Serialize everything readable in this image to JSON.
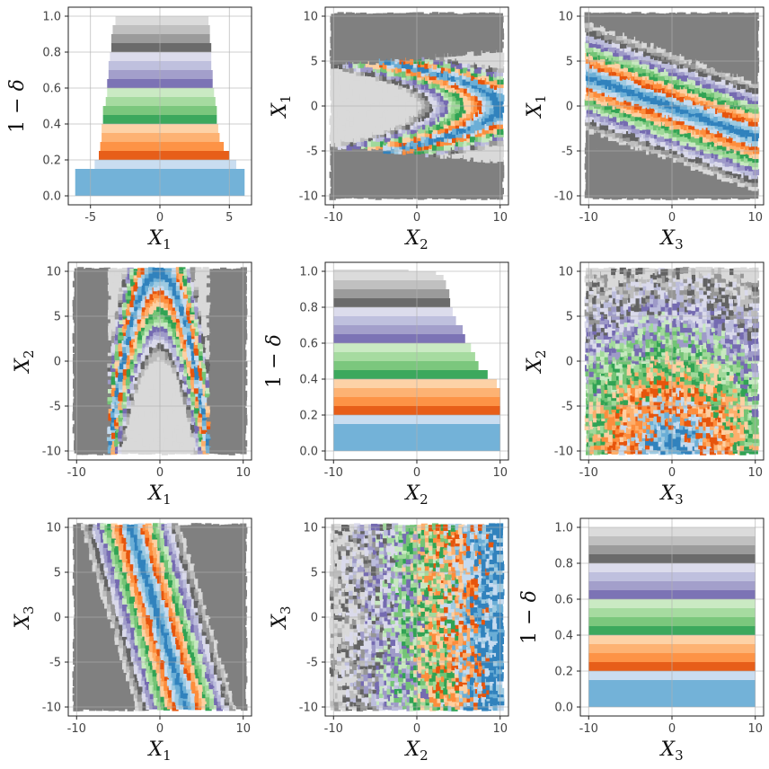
{
  "figure": {
    "background": "#ffffff",
    "grid": true
  },
  "palette": {
    "tab20c": [
      "#3182bd",
      "#6baed6",
      "#9ecae1",
      "#c6dbef",
      "#e6550d",
      "#fd8d3c",
      "#fdae6b",
      "#fdd0a2",
      "#31a354",
      "#74c476",
      "#a1d99b",
      "#c7e9c0",
      "#756bb1",
      "#9e9ac8",
      "#bcbddc",
      "#dadaeb",
      "#636363",
      "#969696",
      "#bdbdbd",
      "#d9d9d9"
    ],
    "outside": "#808080"
  },
  "chart_data": [
    {
      "panel": "r0c0",
      "type": "bar",
      "orientation": "horizontal",
      "xlabel": "X_1",
      "ylabel": "1 − δ",
      "xlim": [
        -6.6,
        6.6
      ],
      "ylim": [
        -0.05,
        1.05
      ],
      "xticks": [
        "-5",
        "0",
        "5"
      ],
      "yticks": [
        "0.0",
        "0.2",
        "0.4",
        "0.6",
        "0.8",
        "1.0"
      ],
      "levels": [
        0.05,
        0.15,
        0.2,
        0.25,
        0.3,
        0.35,
        0.4,
        0.45,
        0.5,
        0.55,
        0.6,
        0.65,
        0.7,
        0.75,
        0.8,
        0.85,
        0.9,
        0.95,
        1.0
      ],
      "bars": [
        {
          "y0": 0.0,
          "y1": 0.15,
          "left": -6.1,
          "right": 6.1
        },
        {
          "y0": 0.15,
          "y1": 0.2,
          "left": -4.7,
          "right": 5.5
        },
        {
          "y0": 0.2,
          "y1": 0.25,
          "left": -4.4,
          "right": 5.0
        },
        {
          "y0": 0.25,
          "y1": 0.3,
          "left": -4.3,
          "right": 4.6
        },
        {
          "y0": 0.3,
          "y1": 0.35,
          "left": -4.2,
          "right": 4.3
        },
        {
          "y0": 0.35,
          "y1": 0.4,
          "left": -4.2,
          "right": 4.2
        },
        {
          "y0": 0.4,
          "y1": 0.45,
          "left": -4.1,
          "right": 4.1
        },
        {
          "y0": 0.45,
          "y1": 0.5,
          "left": -4.1,
          "right": 4.1
        },
        {
          "y0": 0.5,
          "y1": 0.55,
          "left": -3.9,
          "right": 4.0
        },
        {
          "y0": 0.55,
          "y1": 0.6,
          "left": -3.8,
          "right": 3.9
        },
        {
          "y0": 0.6,
          "y1": 0.65,
          "left": -3.8,
          "right": 3.8
        },
        {
          "y0": 0.65,
          "y1": 0.7,
          "left": -3.7,
          "right": 3.8
        },
        {
          "y0": 0.7,
          "y1": 0.75,
          "left": -3.7,
          "right": 3.7
        },
        {
          "y0": 0.75,
          "y1": 0.8,
          "left": -3.6,
          "right": 3.7
        },
        {
          "y0": 0.8,
          "y1": 0.85,
          "left": -3.5,
          "right": 3.7
        },
        {
          "y0": 0.85,
          "y1": 0.9,
          "left": -3.5,
          "right": 3.6
        },
        {
          "y0": 0.9,
          "y1": 0.95,
          "left": -3.4,
          "right": 3.6
        },
        {
          "y0": 0.95,
          "y1": 1.0,
          "left": -3.2,
          "right": 3.5
        }
      ]
    },
    {
      "panel": "r0c1",
      "type": "heatmap",
      "shape": "parabola_horizontal",
      "xlabel": "X_2",
      "ylabel": "X_1",
      "xlim": [
        -11,
        11
      ],
      "ylim": [
        -11,
        11
      ],
      "xticks": [
        "-10",
        "0",
        "10"
      ],
      "yticks": [
        "-10",
        "-5",
        "0",
        "5",
        "10"
      ]
    },
    {
      "panel": "r0c2",
      "type": "heatmap",
      "shape": "diagonal_band",
      "xlabel": "X_3",
      "ylabel": "X_1",
      "xlim": [
        -11,
        11
      ],
      "ylim": [
        -11,
        11
      ],
      "xticks": [
        "-10",
        "0",
        "10"
      ],
      "yticks": [
        "-10",
        "-5",
        "0",
        "5",
        "10"
      ]
    },
    {
      "panel": "r1c0",
      "type": "heatmap",
      "shape": "parabola_vertical",
      "xlabel": "X_1",
      "ylabel": "X_2",
      "xlim": [
        -11,
        11
      ],
      "ylim": [
        -11,
        11
      ],
      "xticks": [
        "-10",
        "0",
        "10"
      ],
      "yticks": [
        "-10",
        "-5",
        "0",
        "5",
        "10"
      ]
    },
    {
      "panel": "r1c1",
      "type": "bar",
      "orientation": "horizontal",
      "xlabel": "X_2",
      "ylabel": "1 − δ",
      "xlim": [
        -11,
        11
      ],
      "ylim": [
        -0.05,
        1.05
      ],
      "xticks": [
        "-10",
        "0",
        "10"
      ],
      "yticks": [
        "0.0",
        "0.2",
        "0.4",
        "0.6",
        "0.8",
        "1.0"
      ],
      "bars": [
        {
          "y0": 0.0,
          "y1": 0.15,
          "left": -10,
          "right": 10
        },
        {
          "y0": 0.15,
          "y1": 0.2,
          "left": -10,
          "right": 10
        },
        {
          "y0": 0.2,
          "y1": 0.25,
          "left": -10,
          "right": 10
        },
        {
          "y0": 0.25,
          "y1": 0.3,
          "left": -10,
          "right": 10
        },
        {
          "y0": 0.3,
          "y1": 0.35,
          "left": -10,
          "right": 10
        },
        {
          "y0": 0.35,
          "y1": 0.4,
          "left": -10,
          "right": 9.6
        },
        {
          "y0": 0.4,
          "y1": 0.45,
          "left": -10,
          "right": 8.5
        },
        {
          "y0": 0.45,
          "y1": 0.5,
          "left": -10,
          "right": 7.4
        },
        {
          "y0": 0.5,
          "y1": 0.55,
          "left": -10,
          "right": 7.0
        },
        {
          "y0": 0.55,
          "y1": 0.6,
          "left": -10,
          "right": 6.5
        },
        {
          "y0": 0.6,
          "y1": 0.65,
          "left": -10,
          "right": 5.8
        },
        {
          "y0": 0.65,
          "y1": 0.7,
          "left": -10,
          "right": 5.5
        },
        {
          "y0": 0.7,
          "y1": 0.75,
          "left": -10,
          "right": 4.7
        },
        {
          "y0": 0.75,
          "y1": 0.8,
          "left": -10,
          "right": 4.3
        },
        {
          "y0": 0.8,
          "y1": 0.85,
          "left": -10,
          "right": 4.0
        },
        {
          "y0": 0.85,
          "y1": 0.9,
          "left": -10,
          "right": 3.9
        },
        {
          "y0": 0.9,
          "y1": 0.95,
          "left": -10,
          "right": 3.5
        },
        {
          "y0": 0.95,
          "y1": 0.98,
          "left": -10,
          "right": 3.2
        },
        {
          "y0": 0.98,
          "y1": 1.0,
          "left": -10,
          "right": 2.3
        },
        {
          "y0": 1.0,
          "y1": 1.01,
          "left": -10,
          "right": -1.0
        }
      ]
    },
    {
      "panel": "r1c2",
      "type": "heatmap",
      "shape": "scattered_arcs",
      "xlabel": "X_3",
      "ylabel": "X_2",
      "xlim": [
        -11,
        11
      ],
      "ylim": [
        -11,
        11
      ],
      "xticks": [
        "-10",
        "0",
        "10"
      ],
      "yticks": [
        "-10",
        "-5",
        "0",
        "5",
        "10"
      ]
    },
    {
      "panel": "r2c0",
      "type": "heatmap",
      "shape": "steep_band",
      "xlabel": "X_1",
      "ylabel": "X_3",
      "xlim": [
        -11,
        11
      ],
      "ylim": [
        -11,
        11
      ],
      "xticks": [
        "-10",
        "0",
        "10"
      ],
      "yticks": [
        "-10",
        "-5",
        "0",
        "5",
        "10"
      ]
    },
    {
      "panel": "r2c1",
      "type": "heatmap",
      "shape": "scattered_vertical",
      "xlabel": "X_2",
      "ylabel": "X_3",
      "xlim": [
        -11,
        11
      ],
      "ylim": [
        -11,
        11
      ],
      "xticks": [
        "-10",
        "0",
        "10"
      ],
      "yticks": [
        "-10",
        "-5",
        "0",
        "5",
        "10"
      ]
    },
    {
      "panel": "r2c2",
      "type": "bar",
      "orientation": "horizontal",
      "xlabel": "X_3",
      "ylabel": "1 − δ",
      "xlim": [
        -11,
        11
      ],
      "ylim": [
        -0.05,
        1.05
      ],
      "xticks": [
        "-10",
        "0",
        "10"
      ],
      "yticks": [
        "0.0",
        "0.2",
        "0.4",
        "0.6",
        "0.8",
        "1.0"
      ],
      "bars": [
        {
          "y0": 0.0,
          "y1": 0.15,
          "left": -10,
          "right": 10
        },
        {
          "y0": 0.15,
          "y1": 0.2,
          "left": -10,
          "right": 10
        },
        {
          "y0": 0.2,
          "y1": 0.25,
          "left": -10,
          "right": 10
        },
        {
          "y0": 0.25,
          "y1": 0.3,
          "left": -10,
          "right": 10
        },
        {
          "y0": 0.3,
          "y1": 0.35,
          "left": -10,
          "right": 10
        },
        {
          "y0": 0.35,
          "y1": 0.4,
          "left": -10,
          "right": 10
        },
        {
          "y0": 0.4,
          "y1": 0.45,
          "left": -10,
          "right": 10
        },
        {
          "y0": 0.45,
          "y1": 0.5,
          "left": -10,
          "right": 10
        },
        {
          "y0": 0.5,
          "y1": 0.55,
          "left": -10,
          "right": 10
        },
        {
          "y0": 0.55,
          "y1": 0.6,
          "left": -10,
          "right": 10
        },
        {
          "y0": 0.6,
          "y1": 0.65,
          "left": -10,
          "right": 10
        },
        {
          "y0": 0.65,
          "y1": 0.7,
          "left": -10,
          "right": 10
        },
        {
          "y0": 0.7,
          "y1": 0.75,
          "left": -10,
          "right": 10
        },
        {
          "y0": 0.75,
          "y1": 0.8,
          "left": -10,
          "right": 10
        },
        {
          "y0": 0.8,
          "y1": 0.85,
          "left": -10,
          "right": 10
        },
        {
          "y0": 0.85,
          "y1": 0.9,
          "left": -10,
          "right": 10
        },
        {
          "y0": 0.9,
          "y1": 0.95,
          "left": -10,
          "right": 10
        },
        {
          "y0": 0.95,
          "y1": 0.98,
          "left": -10,
          "right": 10
        },
        {
          "y0": 0.98,
          "y1": 1.0,
          "left": -10,
          "right": 10
        }
      ]
    }
  ]
}
